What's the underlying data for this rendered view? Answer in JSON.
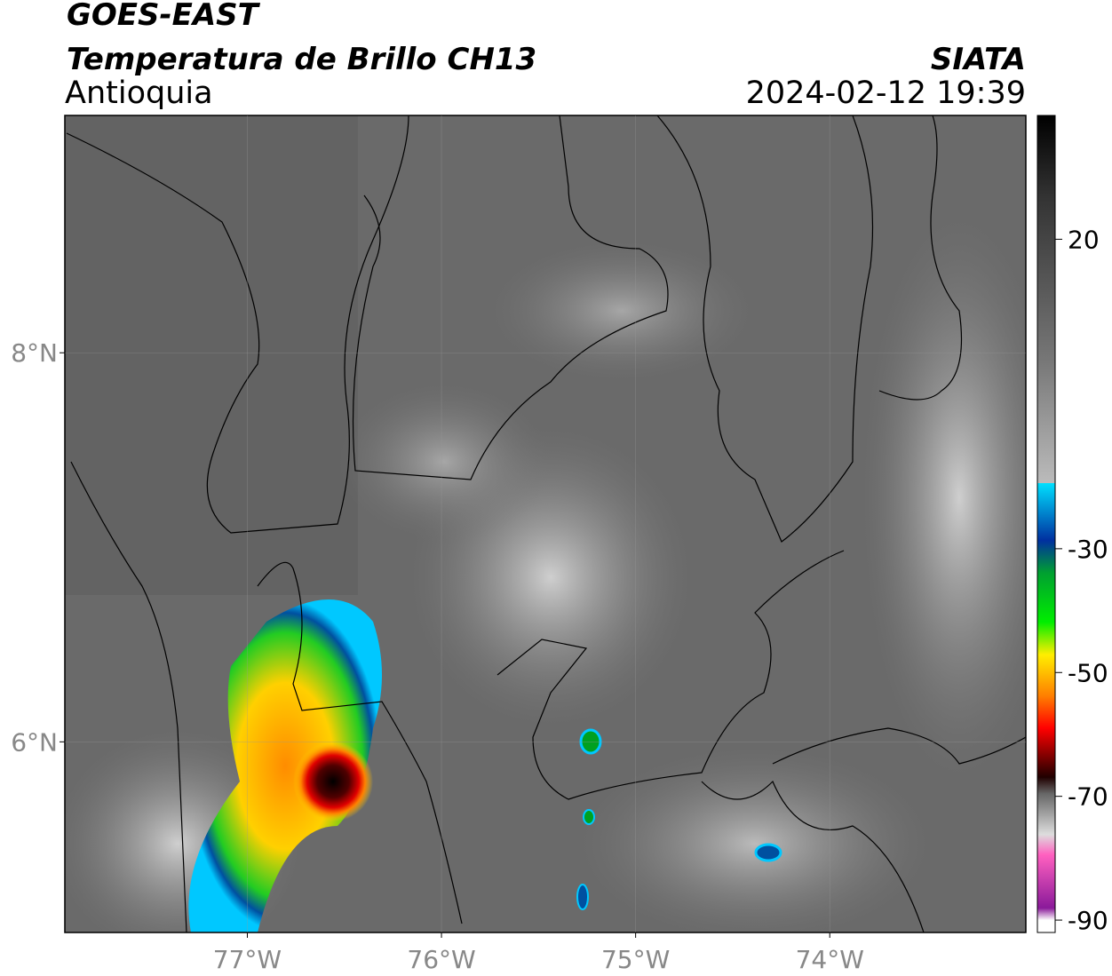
{
  "header": {
    "title": "GOES-EAST",
    "subtitle": "Temperatura de Brillo CH13",
    "region": "Antioquia",
    "source": "SIATA",
    "datetime": "2024-02-12 19:39"
  },
  "map": {
    "xlim": [
      -77.94,
      -72.99
    ],
    "ylim": [
      5.02,
      9.22
    ],
    "xticks": [
      {
        "value": -77,
        "label": "77°W"
      },
      {
        "value": -76,
        "label": "76°W"
      },
      {
        "value": -75,
        "label": "75°W"
      },
      {
        "value": -74,
        "label": "74°W"
      }
    ],
    "yticks": [
      {
        "value": 8,
        "label": "8°N"
      },
      {
        "value": 6,
        "label": "6°N"
      }
    ],
    "grid": true
  },
  "colorbar": {
    "lim": [
      -92,
      40
    ],
    "ticks": [
      20,
      -30,
      -50,
      -70,
      -90
    ]
  }
}
